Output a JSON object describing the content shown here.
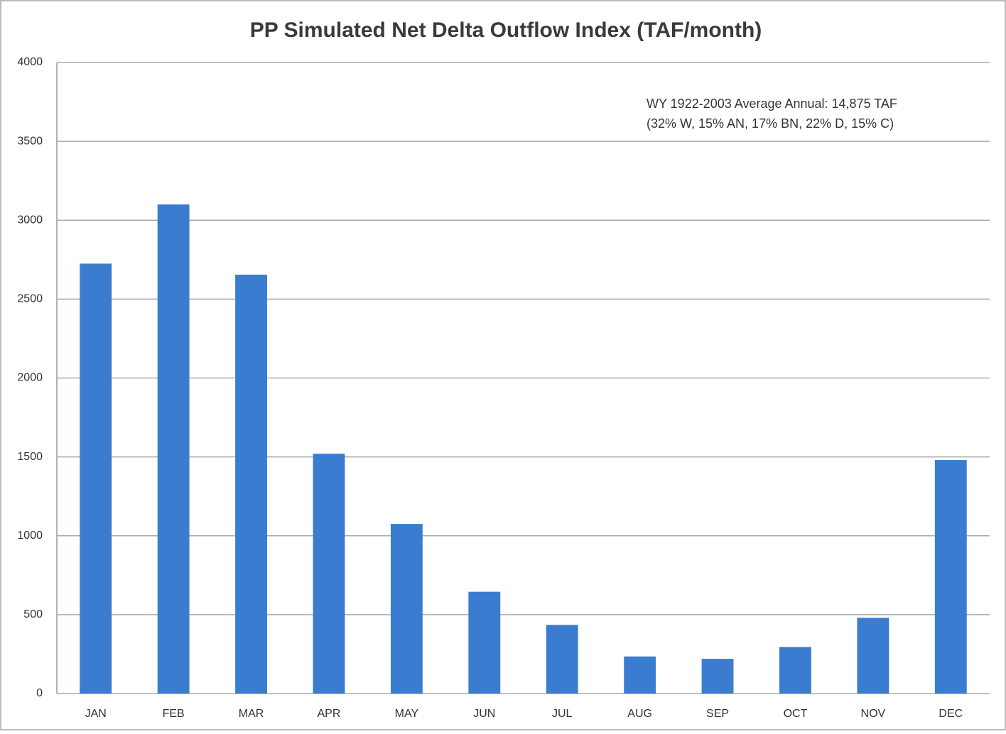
{
  "chart_data": {
    "type": "bar",
    "title": "PP Simulated Net Delta Outflow Index (TAF/month)",
    "annotation": [
      "WY 1922-2003  Average Annual: 14,875 TAF",
      "(32% W, 15% AN, 17% BN, 22% D, 15% C)"
    ],
    "categories": [
      "JAN",
      "FEB",
      "MAR",
      "APR",
      "MAY",
      "JUN",
      "JUL",
      "AUG",
      "SEP",
      "OCT",
      "NOV",
      "DEC"
    ],
    "values": [
      2725,
      3100,
      2655,
      1520,
      1075,
      645,
      435,
      235,
      220,
      295,
      480,
      1480
    ],
    "color": "#3a7dd0",
    "ylim": [
      0,
      4000
    ],
    "yticks": [
      0,
      500,
      1000,
      1500,
      2000,
      2500,
      3000,
      3500,
      4000
    ],
    "grid": true
  }
}
